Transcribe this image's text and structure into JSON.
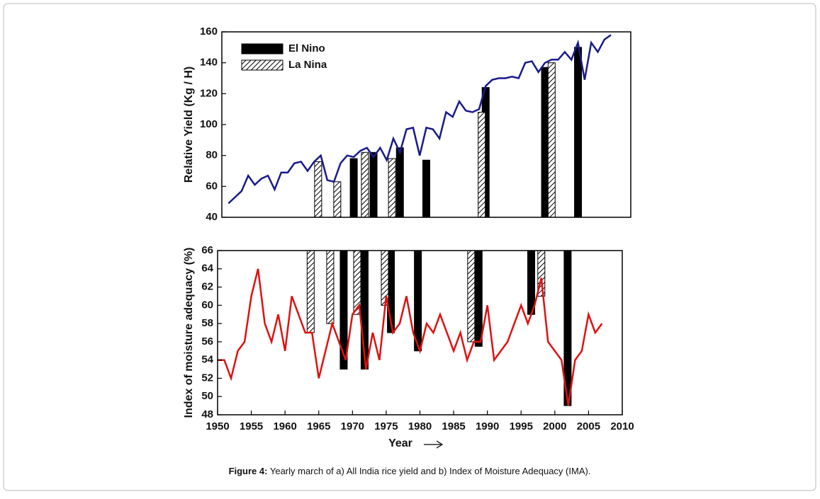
{
  "chart_data": [
    {
      "type": "line",
      "ylabel": "Relative Yield (Kg / H)",
      "xlim": [
        1950,
        2012
      ],
      "ylim": [
        40,
        160
      ],
      "yticks": [
        40,
        60,
        80,
        100,
        120,
        140,
        160
      ],
      "legend": "upper left",
      "x": [
        1951,
        1952,
        1953,
        1954,
        1955,
        1956,
        1957,
        1958,
        1959,
        1960,
        1961,
        1962,
        1963,
        1964,
        1965,
        1966,
        1967,
        1968,
        1969,
        1970,
        1971,
        1972,
        1973,
        1974,
        1975,
        1976,
        1977,
        1978,
        1979,
        1980,
        1981,
        1982,
        1983,
        1984,
        1985,
        1986,
        1987,
        1988,
        1989,
        1990,
        1991,
        1992,
        1993,
        1994,
        1995,
        1996,
        1997,
        1998,
        1999,
        2000,
        2001,
        2002,
        2003,
        2004,
        2005,
        2006,
        2007,
        2008,
        2009
      ],
      "line": {
        "color": "#1a1a8c",
        "values": [
          49,
          53,
          57,
          67,
          61,
          65,
          67,
          58,
          69,
          69,
          75,
          76,
          70,
          76,
          80,
          64,
          63,
          75,
          80,
          79,
          83,
          85,
          79,
          85,
          77,
          91,
          82,
          97,
          98,
          80,
          98,
          97,
          91,
          108,
          105,
          115,
          109,
          108,
          110,
          125,
          129,
          130,
          130,
          131,
          130,
          140,
          141,
          134,
          140,
          142,
          142,
          147,
          142,
          153,
          129,
          153,
          147,
          155,
          158
        ]
      },
      "bars": [
        {
          "name": "El Nino",
          "pattern": "solid",
          "color": "#000000",
          "x": [
            1970,
            1973,
            1977,
            1981,
            1990,
            1999,
            2004
          ],
          "values": [
            78,
            82,
            85,
            77,
            124,
            137,
            150
          ]
        },
        {
          "name": "La Nina",
          "pattern": "hatch",
          "color": "#000000",
          "x": [
            1964.6,
            1967.5,
            1971.7,
            1975.8,
            1989.4,
            2000
          ],
          "values": [
            76,
            63,
            82,
            78,
            108,
            140
          ]
        }
      ]
    },
    {
      "type": "line",
      "ylabel": "Index of moisture adequacy (%)",
      "xlabel": "Year",
      "xlim": [
        1950,
        2010
      ],
      "ylim": [
        48,
        66
      ],
      "yticks": [
        48,
        50,
        52,
        54,
        56,
        58,
        60,
        62,
        64,
        66
      ],
      "xticks": [
        1950,
        1955,
        1960,
        1965,
        1970,
        1975,
        1980,
        1985,
        1990,
        1995,
        2000,
        2005,
        2010
      ],
      "bars_hang": true,
      "x": [
        1950,
        1951,
        1952,
        1953,
        1954,
        1955,
        1956,
        1957,
        1958,
        1959,
        1960,
        1961,
        1962,
        1963,
        1964,
        1965,
        1966,
        1967,
        1968,
        1969,
        1970,
        1971,
        1972,
        1973,
        1974,
        1975,
        1976,
        1977,
        1978,
        1979,
        1980,
        1981,
        1982,
        1983,
        1984,
        1985,
        1986,
        1987,
        1988,
        1989,
        1990,
        1991,
        1992,
        1993,
        1994,
        1995,
        1996,
        1997,
        1998,
        1999,
        2000,
        2001,
        2002,
        2003,
        2004,
        2005,
        2006,
        2007
      ],
      "line": {
        "color": "#e01010",
        "values": [
          54,
          54,
          52,
          55,
          56,
          61,
          64,
          58,
          56,
          59,
          55,
          61,
          59,
          57,
          57,
          52,
          55,
          58,
          56,
          54,
          59,
          60,
          53,
          57,
          54,
          61,
          57,
          58,
          61,
          57,
          55,
          58,
          57,
          59,
          57,
          55,
          57,
          54,
          56,
          56,
          60,
          54,
          55,
          56,
          58,
          60,
          58,
          60,
          63,
          56,
          55,
          54,
          49,
          54,
          55,
          59,
          57,
          58
        ]
      },
      "bars": [
        {
          "name": "El Nino",
          "pattern": "solid",
          "color": "#000000",
          "x": [
            1968.7,
            1971.8,
            1975.7,
            1979.7,
            1988.7,
            1996.5,
            2001.9
          ],
          "values": [
            53,
            53,
            57,
            55,
            55.5,
            59,
            49
          ]
        },
        {
          "name": "La Nina",
          "pattern": "hatch",
          "color": "#000000",
          "x": [
            1963.8,
            1966.7,
            1970.7,
            1974.8,
            1987.6,
            1998
          ],
          "values": [
            57,
            58,
            59,
            60,
            56,
            61
          ]
        }
      ]
    }
  ],
  "caption": {
    "label": "Figure 4:",
    "text": "Yearly march of a) All India rice yield and b) Index of Moisture Adequacy (IMA)."
  }
}
